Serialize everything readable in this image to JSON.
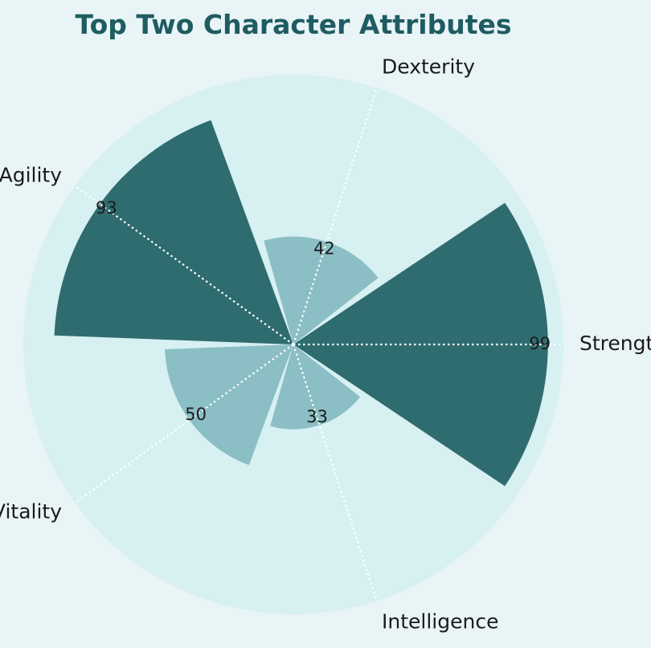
{
  "chart_data": {
    "type": "polar-bar",
    "title": "Top Two Character Attributes",
    "categories": [
      "Strength",
      "Dexterity",
      "Agility",
      "Vitality",
      "Intelligence"
    ],
    "values": [
      99,
      42,
      93,
      50,
      33
    ],
    "highlighted": [
      "Strength",
      "Agility"
    ],
    "rlim": [
      0,
      105
    ],
    "grid": true,
    "direction": "counterclockwise",
    "start_angle_deg": 0,
    "colors": {
      "page_background": "#e9f4f6",
      "polar_background": "#d7f0f2",
      "highlight_bar": "#2f6c70",
      "normal_bar": "#8bbec5",
      "title": "#1e5c62",
      "grid": "#ffffff"
    }
  }
}
